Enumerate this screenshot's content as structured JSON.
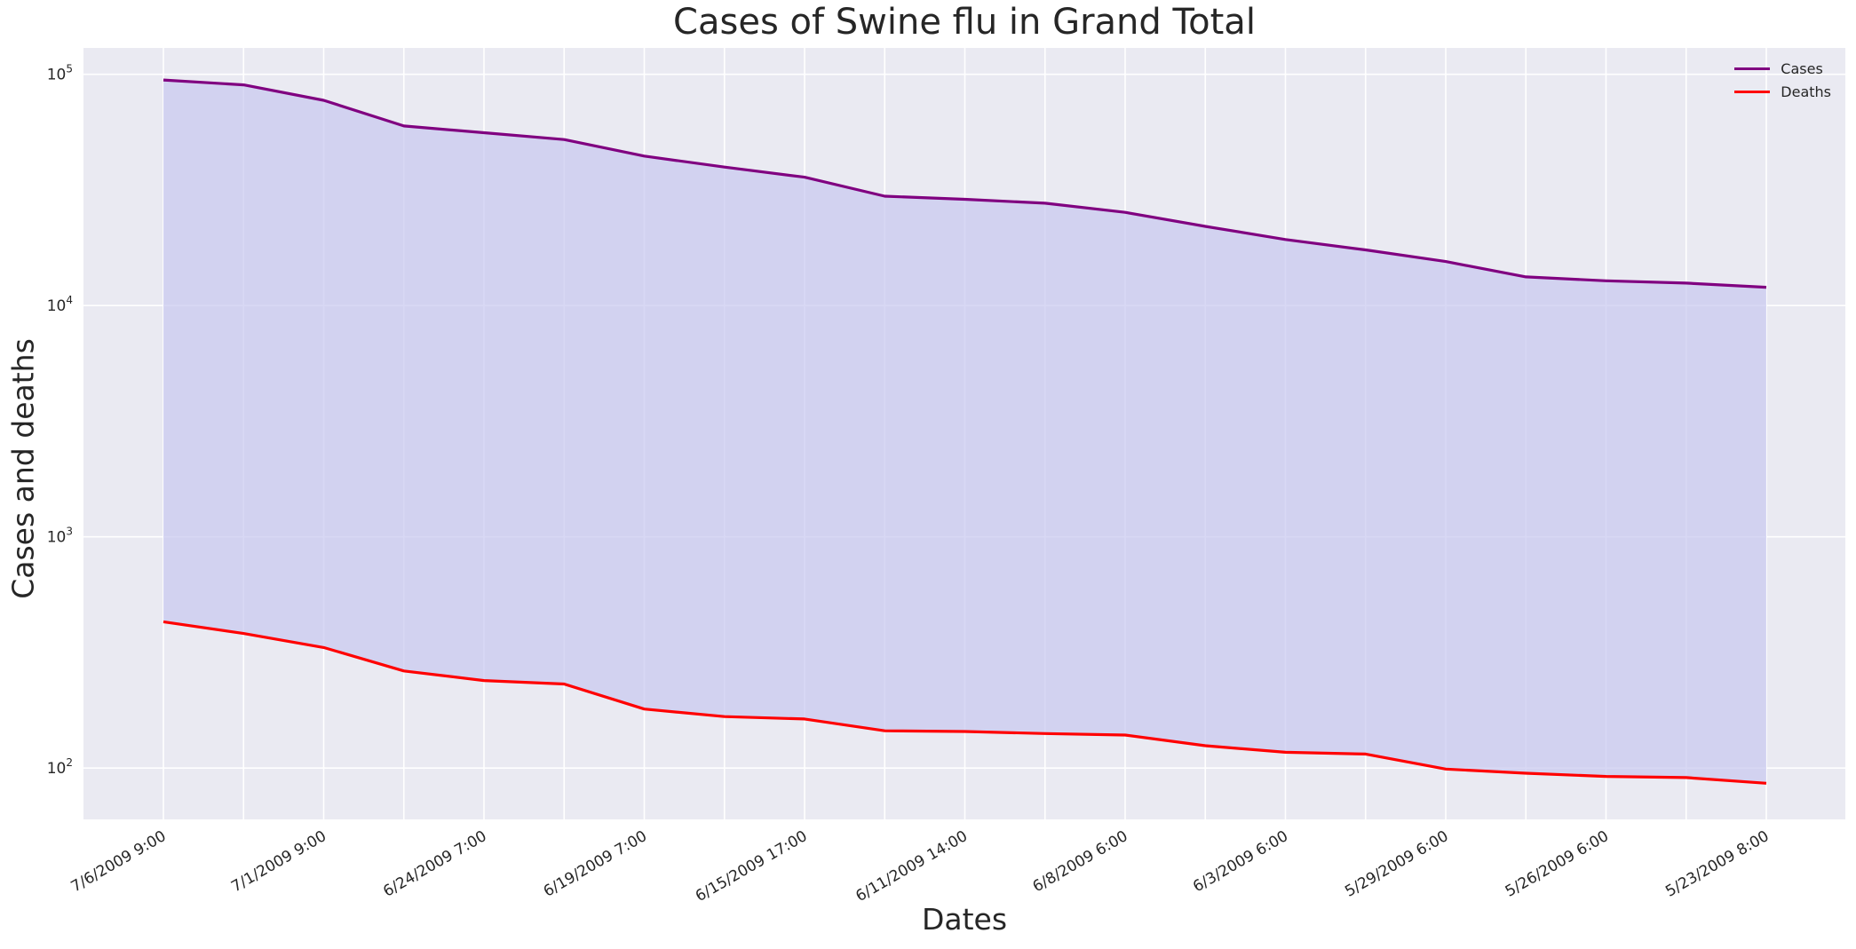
{
  "chart_data": {
    "type": "area",
    "title": "Cases of Swine flu in Grand Total",
    "xlabel": "Dates",
    "ylabel": "Cases and deaths",
    "yscale": "log",
    "ylim": [
      60,
      130000
    ],
    "yticks": [
      {
        "value": 100,
        "base": "10",
        "exp": "2"
      },
      {
        "value": 1000,
        "base": "10",
        "exp": "3"
      },
      {
        "value": 10000,
        "base": "10",
        "exp": "4"
      },
      {
        "value": 100000,
        "base": "10",
        "exp": "5"
      }
    ],
    "tick_labels": [
      "7/6/2009 9:00",
      "7/1/2009 9:00",
      "6/24/2009 7:00",
      "6/19/2009 7:00",
      "6/15/2009 17:00",
      "6/11/2009 14:00",
      "6/8/2009 6:00",
      "6/3/2009 6:00",
      "5/29/2009 6:00",
      "5/26/2009 6:00",
      "5/23/2009 8:00"
    ],
    "point_count": 21,
    "series": [
      {
        "name": "Cases",
        "color": "#800080",
        "values": [
          94500,
          90000,
          77200,
          59800,
          55900,
          52200,
          44300,
          39700,
          35900,
          29700,
          28800,
          27700,
          25300,
          22000,
          19300,
          17400,
          15500,
          13300,
          12800,
          12500,
          12000
        ]
      },
      {
        "name": "Deaths",
        "color": "#ff0000",
        "values": [
          429,
          382,
          332,
          263,
          239,
          231,
          180,
          167,
          163,
          145,
          144,
          141,
          139,
          125,
          117,
          115,
          99,
          95,
          92,
          91,
          86
        ]
      }
    ],
    "fill_between": {
      "color": "#c8c8f0"
    },
    "grid": true,
    "legend_position": "top-right",
    "colors": {
      "background": "#eaeaf2",
      "grid": "#ffffff"
    }
  }
}
